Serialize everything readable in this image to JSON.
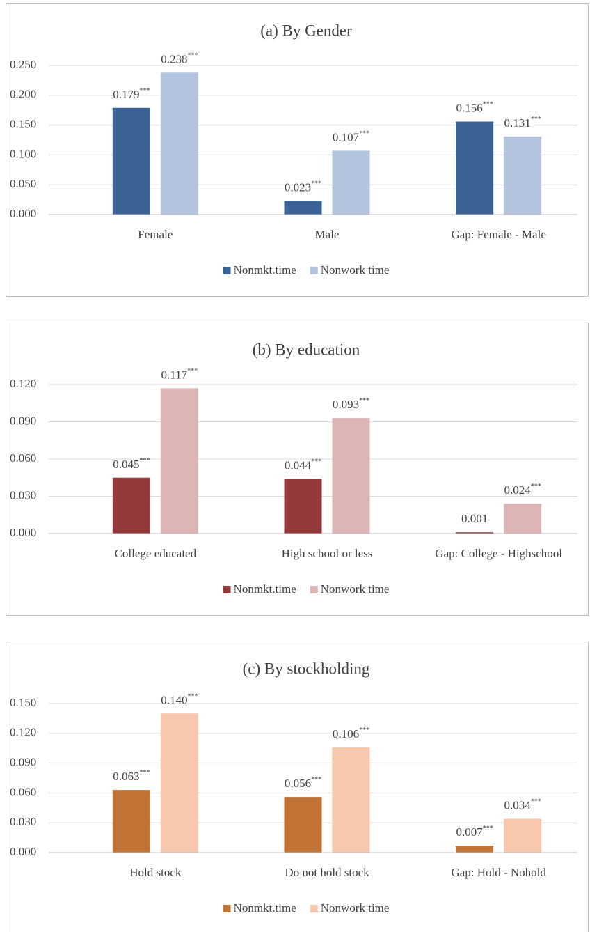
{
  "chart_data": [
    {
      "type": "bar",
      "title": "(a) By Gender",
      "categories": [
        "Female",
        "Male",
        "Gap: Female - Male"
      ],
      "series": [
        {
          "name": "Nonmkt.time",
          "color": "#3b6396",
          "values": [
            0.179,
            0.023,
            0.156
          ],
          "value_labels": [
            "0.179***",
            "0.023***",
            "0.156***"
          ]
        },
        {
          "name": "Nonwork time",
          "color": "#b4c4de",
          "values": [
            0.238,
            0.107,
            0.131
          ],
          "value_labels": [
            "0.238***",
            "0.107***",
            "0.131***"
          ]
        }
      ],
      "ylim": [
        0,
        0.25
      ],
      "yticks": [
        {
          "value": 0,
          "label": "0.000"
        },
        {
          "value": 0.05,
          "label": "0.050"
        },
        {
          "value": 0.1,
          "label": "0.100"
        },
        {
          "value": 0.15,
          "label": "0.150"
        },
        {
          "value": 0.2,
          "label": "0.200"
        },
        {
          "value": 0.25,
          "label": "0.250"
        }
      ],
      "grid": true,
      "legend": "bottom"
    },
    {
      "type": "bar",
      "title": "(b) By education",
      "categories": [
        "College educated",
        "High school or less",
        "Gap: College - Highschool"
      ],
      "series": [
        {
          "name": "Nonmkt.time",
          "color": "#953a3a",
          "values": [
            0.045,
            0.044,
            0.001
          ],
          "value_labels": [
            "0.045***",
            "0.044***",
            "0.001"
          ]
        },
        {
          "name": "Nonwork time",
          "color": "#ddb5b5",
          "values": [
            0.117,
            0.093,
            0.024
          ],
          "value_labels": [
            "0.117***",
            "0.093***",
            "0.024***"
          ]
        }
      ],
      "ylim": [
        0,
        0.12
      ],
      "yticks": [
        {
          "value": 0,
          "label": "0.000"
        },
        {
          "value": 0.03,
          "label": "0.030"
        },
        {
          "value": 0.06,
          "label": "0.060"
        },
        {
          "value": 0.09,
          "label": "0.090"
        },
        {
          "value": 0.12,
          "label": "0.120"
        }
      ],
      "grid": true,
      "legend": "bottom"
    },
    {
      "type": "bar",
      "title": "(c) By stockholding",
      "categories": [
        "Hold stock",
        "Do not hold stock",
        "Gap: Hold - Nohold"
      ],
      "series": [
        {
          "name": "Nonmkt.time",
          "color": "#c07335",
          "values": [
            0.063,
            0.056,
            0.007
          ],
          "value_labels": [
            "0.063***",
            "0.056***",
            "0.007***"
          ]
        },
        {
          "name": "Nonwork time",
          "color": "#f7c8ae",
          "values": [
            0.14,
            0.106,
            0.034
          ],
          "value_labels": [
            "0.140***",
            "0.106***",
            "0.034***"
          ]
        }
      ],
      "ylim": [
        0,
        0.15
      ],
      "yticks": [
        {
          "value": 0,
          "label": "0.000"
        },
        {
          "value": 0.03,
          "label": "0.030"
        },
        {
          "value": 0.06,
          "label": "0.060"
        },
        {
          "value": 0.09,
          "label": "0.090"
        },
        {
          "value": 0.12,
          "label": "0.120"
        },
        {
          "value": 0.15,
          "label": "0.150"
        }
      ],
      "grid": true,
      "legend": "bottom"
    }
  ]
}
